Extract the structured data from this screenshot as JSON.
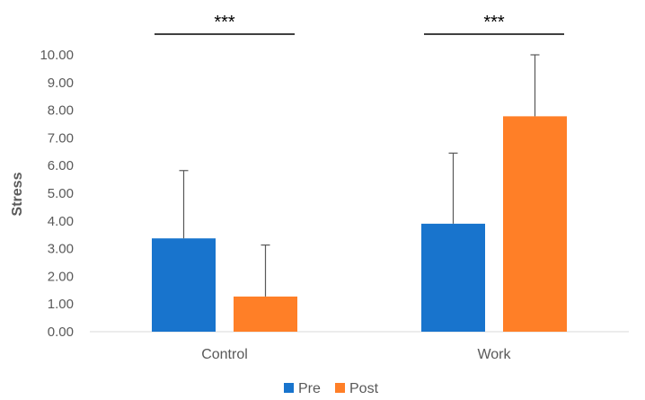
{
  "chart_data": {
    "type": "bar",
    "title": "",
    "xlabel": "",
    "ylabel": "Stress",
    "categories": [
      "Control",
      "Work"
    ],
    "series": [
      {
        "name": "Pre",
        "color": "#1874CD",
        "values": [
          3.37,
          3.9
        ],
        "error_upper": [
          5.82,
          6.45
        ]
      },
      {
        "name": "Post",
        "color": "#FF7F27",
        "values": [
          1.27,
          7.78
        ],
        "error_upper": [
          3.13,
          10.0
        ]
      }
    ],
    "ylim": [
      0,
      10
    ],
    "yticks": [
      "0.00",
      "1.00",
      "2.00",
      "3.00",
      "4.00",
      "5.00",
      "6.00",
      "7.00",
      "8.00",
      "9.00",
      "10.00"
    ],
    "grid": false,
    "legend_position": "bottom",
    "significance": [
      {
        "category": "Control",
        "label": "***"
      },
      {
        "category": "Work",
        "label": "***"
      }
    ]
  }
}
